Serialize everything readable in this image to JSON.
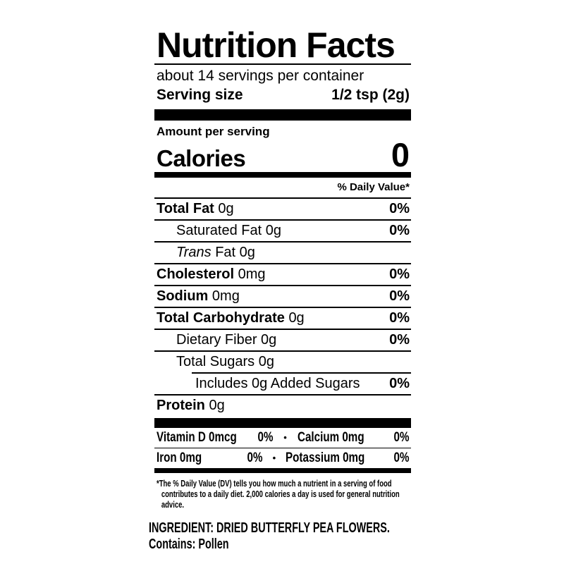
{
  "colors": {
    "text": "#000000",
    "background": "#ffffff"
  },
  "label": {
    "title": "Nutrition Facts",
    "servings_per_container": "about 14 servings per container",
    "serving_size": {
      "label": "Serving size",
      "value": "1/2 tsp (2g)"
    },
    "amount_per_serving": "Amount per serving",
    "calories": {
      "label": "Calories",
      "value": "0"
    },
    "daily_value_header": "% Daily Value*",
    "rows": [
      {
        "name": "Total Fat",
        "amount": "0g",
        "dv": "0%"
      },
      {
        "name": "Saturated Fat",
        "amount": "0g",
        "dv": "0%"
      },
      {
        "name_italic": "Trans",
        "name": "Fat",
        "amount": "0g",
        "dv": ""
      },
      {
        "name": "Cholesterol",
        "amount": "0mg",
        "dv": "0%"
      },
      {
        "name": "Sodium",
        "amount": "0mg",
        "dv": "0%"
      },
      {
        "name": "Total Carbohydrate",
        "amount": "0g",
        "dv": "0%"
      },
      {
        "name": "Dietary Fiber",
        "amount": "0g",
        "dv": "0%"
      },
      {
        "name": "Total Sugars",
        "amount": "0g",
        "dv": ""
      },
      {
        "name": "Includes 0g Added Sugars",
        "amount": "",
        "dv": "0%"
      },
      {
        "name": "Protein",
        "amount": "0g",
        "dv": ""
      }
    ],
    "vitamins": {
      "separator": "•",
      "rows": [
        {
          "left_name": "Vitamin D 0mcg",
          "left_dv": "0%",
          "right_name": "Calcium 0mg",
          "right_dv": "0%"
        },
        {
          "left_name": "Iron 0mg",
          "left_dv": "0%",
          "right_name": "Potassium 0mg",
          "right_dv": "0%"
        }
      ]
    },
    "footnote": "*The % Daily Value (DV) tells you how much a nutrient in a serving of food contributes to a daily diet. 2,000 calories a day is used for general nutrition advice.",
    "ingredient": "INGREDIENT: DRIED BUTTERFLY PEA FLOWERS.",
    "contains": "Contains: Pollen"
  }
}
